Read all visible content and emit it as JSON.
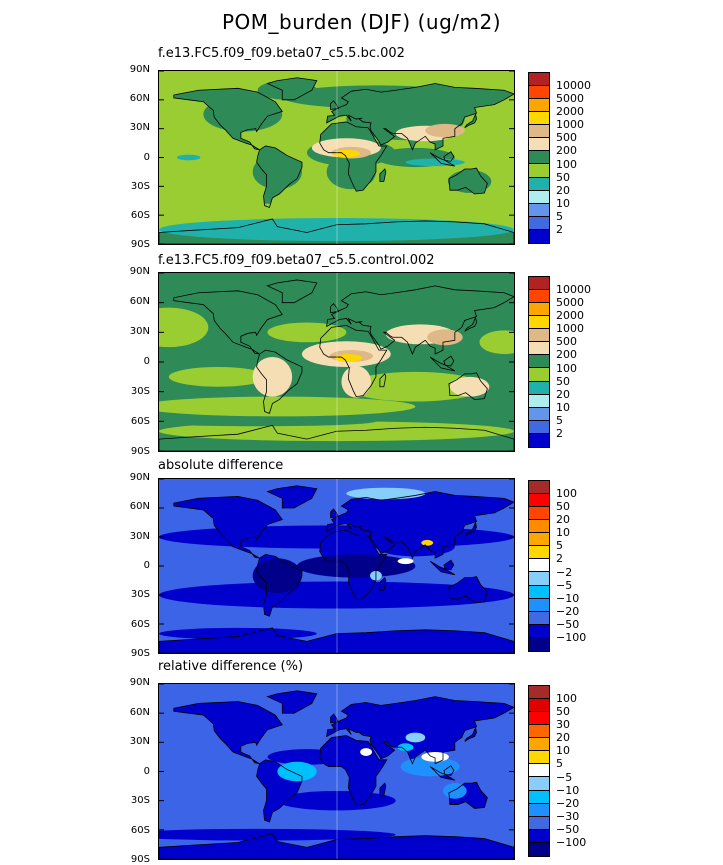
{
  "title": "POM_burden (DJF) (ug/m2)",
  "lat_labels": [
    "90N",
    "60N",
    "30N",
    "0",
    "30S",
    "60S",
    "90S"
  ],
  "panels": [
    {
      "subtitle": "f.e13.FC5.f09_f09.beta07_c5.5.bc.002",
      "colorbar": {
        "labels": [
          "10000",
          "5000",
          "2000",
          "1000",
          "500",
          "200",
          "100",
          "50",
          "20",
          "10",
          "5",
          "2"
        ],
        "colors": [
          "#b22222",
          "#ff4500",
          "#ffa500",
          "#ffd700",
          "#deb887",
          "#f5deb3",
          "#2e8b57",
          "#9acd32",
          "#20b2aa",
          "#afeeee",
          "#6495ed",
          "#4169e1",
          "#0000cd"
        ]
      },
      "base_color": "#9acd32",
      "land_color": "#2e8b57"
    },
    {
      "subtitle": "f.e13.FC5.f09_f09.beta07_c5.5.control.002",
      "colorbar": {
        "labels": [
          "10000",
          "5000",
          "2000",
          "1000",
          "500",
          "200",
          "100",
          "50",
          "20",
          "10",
          "5",
          "2"
        ],
        "colors": [
          "#b22222",
          "#ff4500",
          "#ffa500",
          "#ffd700",
          "#deb887",
          "#f5deb3",
          "#2e8b57",
          "#9acd32",
          "#20b2aa",
          "#afeeee",
          "#6495ed",
          "#4169e1",
          "#0000cd"
        ]
      },
      "base_color": "#2e8b57",
      "land_color": "#2e8b57"
    },
    {
      "subtitle": "absolute difference",
      "colorbar": {
        "labels": [
          "100",
          "50",
          "20",
          "10",
          "5",
          "2",
          "−2",
          "−5",
          "−10",
          "−20",
          "−50",
          "−100"
        ],
        "colors": [
          "#a52a2a",
          "#ff0000",
          "#ff4500",
          "#ff8c00",
          "#ffa500",
          "#ffd700",
          "#ffffff",
          "#87cefa",
          "#00bfff",
          "#1e90ff",
          "#4169e1",
          "#0000cd",
          "#00008b"
        ]
      },
      "base_color": "#3c64e6",
      "land_color": "#0000cd"
    },
    {
      "subtitle": "relative difference (%)",
      "colorbar": {
        "labels": [
          "100",
          "50",
          "30",
          "20",
          "10",
          "5",
          "−5",
          "−10",
          "−20",
          "−30",
          "−50",
          "−100"
        ],
        "colors": [
          "#a52a2a",
          "#e00000",
          "#ff0000",
          "#ff6600",
          "#ffa500",
          "#ffd700",
          "#ffffff",
          "#87cefa",
          "#00bfff",
          "#1e90ff",
          "#4169e1",
          "#0000cd",
          "#00008b"
        ]
      },
      "base_color": "#3c64e6",
      "land_color": "#0000cd"
    }
  ]
}
